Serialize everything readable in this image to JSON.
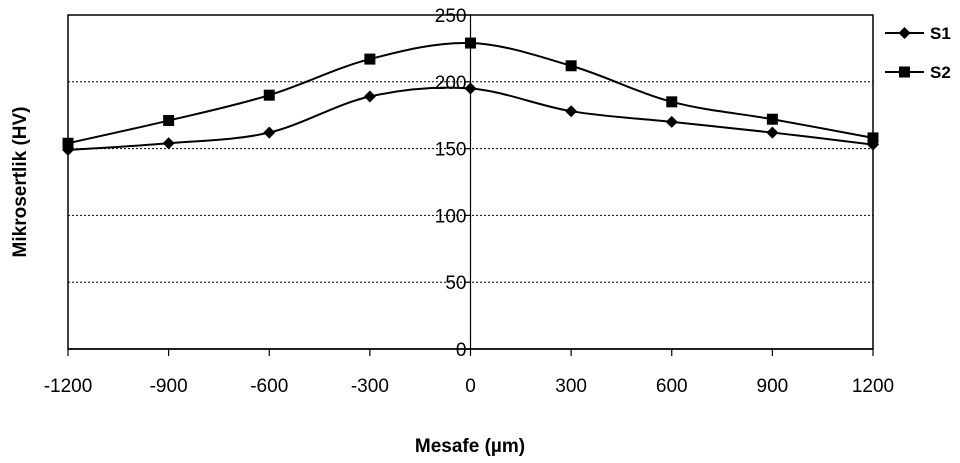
{
  "chart_data": {
    "type": "line",
    "title": "",
    "xlabel": "Mesafe (µm)",
    "ylabel": "Mikrosertlik (HV)",
    "x": [
      -1200,
      -900,
      -600,
      -300,
      0,
      300,
      600,
      900,
      1200
    ],
    "xticks": [
      "-1200",
      "-900",
      "-600",
      "-300",
      "0",
      "300",
      "600",
      "900",
      "1200"
    ],
    "yticks": [
      "0",
      "50",
      "100",
      "150",
      "200",
      "250"
    ],
    "xlim": [
      -1200,
      1200
    ],
    "ylim": [
      0,
      250
    ],
    "grid": "horizontal dotted",
    "legend": "right",
    "series": [
      {
        "name": "S1",
        "marker": "diamond",
        "color": "#000000",
        "values": [
          149,
          154,
          162,
          189,
          195,
          178,
          170,
          162,
          153
        ]
      },
      {
        "name": "S2",
        "marker": "square",
        "color": "#000000",
        "values": [
          154,
          171,
          190,
          217,
          229,
          212,
          185,
          172,
          158
        ]
      }
    ]
  }
}
